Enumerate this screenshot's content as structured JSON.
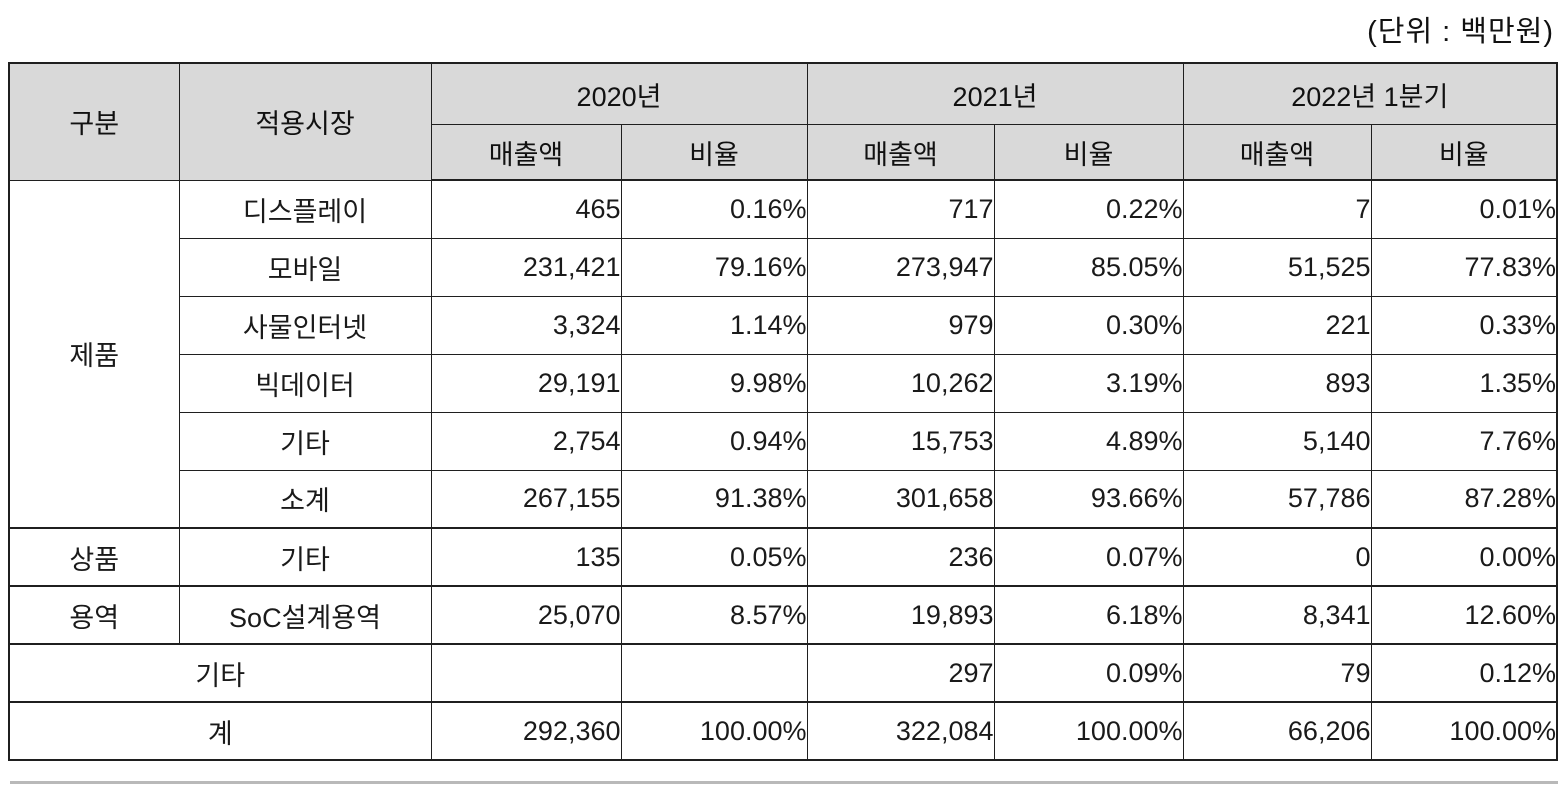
{
  "unit_label": "(단위 : 백만원)",
  "table": {
    "headers": {
      "category": "구분",
      "market": "적용시장",
      "year_groups": [
        "2020년",
        "2021년",
        "2022년 1분기"
      ],
      "sub_revenue": "매출액",
      "sub_ratio": "비율"
    },
    "rows": [
      {
        "category": "제품",
        "market": "디스플레이",
        "v": [
          "465",
          "0.16%",
          "717",
          "0.22%",
          "7",
          "0.01%"
        ]
      },
      {
        "market": "모바일",
        "v": [
          "231,421",
          "79.16%",
          "273,947",
          "85.05%",
          "51,525",
          "77.83%"
        ]
      },
      {
        "market": "사물인터넷",
        "v": [
          "3,324",
          "1.14%",
          "979",
          "0.30%",
          "221",
          "0.33%"
        ]
      },
      {
        "market": "빅데이터",
        "v": [
          "29,191",
          "9.98%",
          "10,262",
          "3.19%",
          "893",
          "1.35%"
        ]
      },
      {
        "market": "기타",
        "v": [
          "2,754",
          "0.94%",
          "15,753",
          "4.89%",
          "5,140",
          "7.76%"
        ]
      },
      {
        "market": "소계",
        "v": [
          "267,155",
          "91.38%",
          "301,658",
          "93.66%",
          "57,786",
          "87.28%"
        ]
      },
      {
        "category": "상품",
        "market": "기타",
        "v": [
          "135",
          "0.05%",
          "236",
          "0.07%",
          "0",
          "0.00%"
        ]
      },
      {
        "category": "용역",
        "market": "SoC설계용역",
        "v": [
          "25,070",
          "8.57%",
          "19,893",
          "6.18%",
          "8,341",
          "12.60%"
        ]
      },
      {
        "label": "기타",
        "v": [
          "",
          "",
          "297",
          "0.09%",
          "79",
          "0.12%"
        ]
      },
      {
        "label": "계",
        "v": [
          "292,360",
          "100.00%",
          "322,084",
          "100.00%",
          "66,206",
          "100.00%"
        ]
      }
    ]
  }
}
